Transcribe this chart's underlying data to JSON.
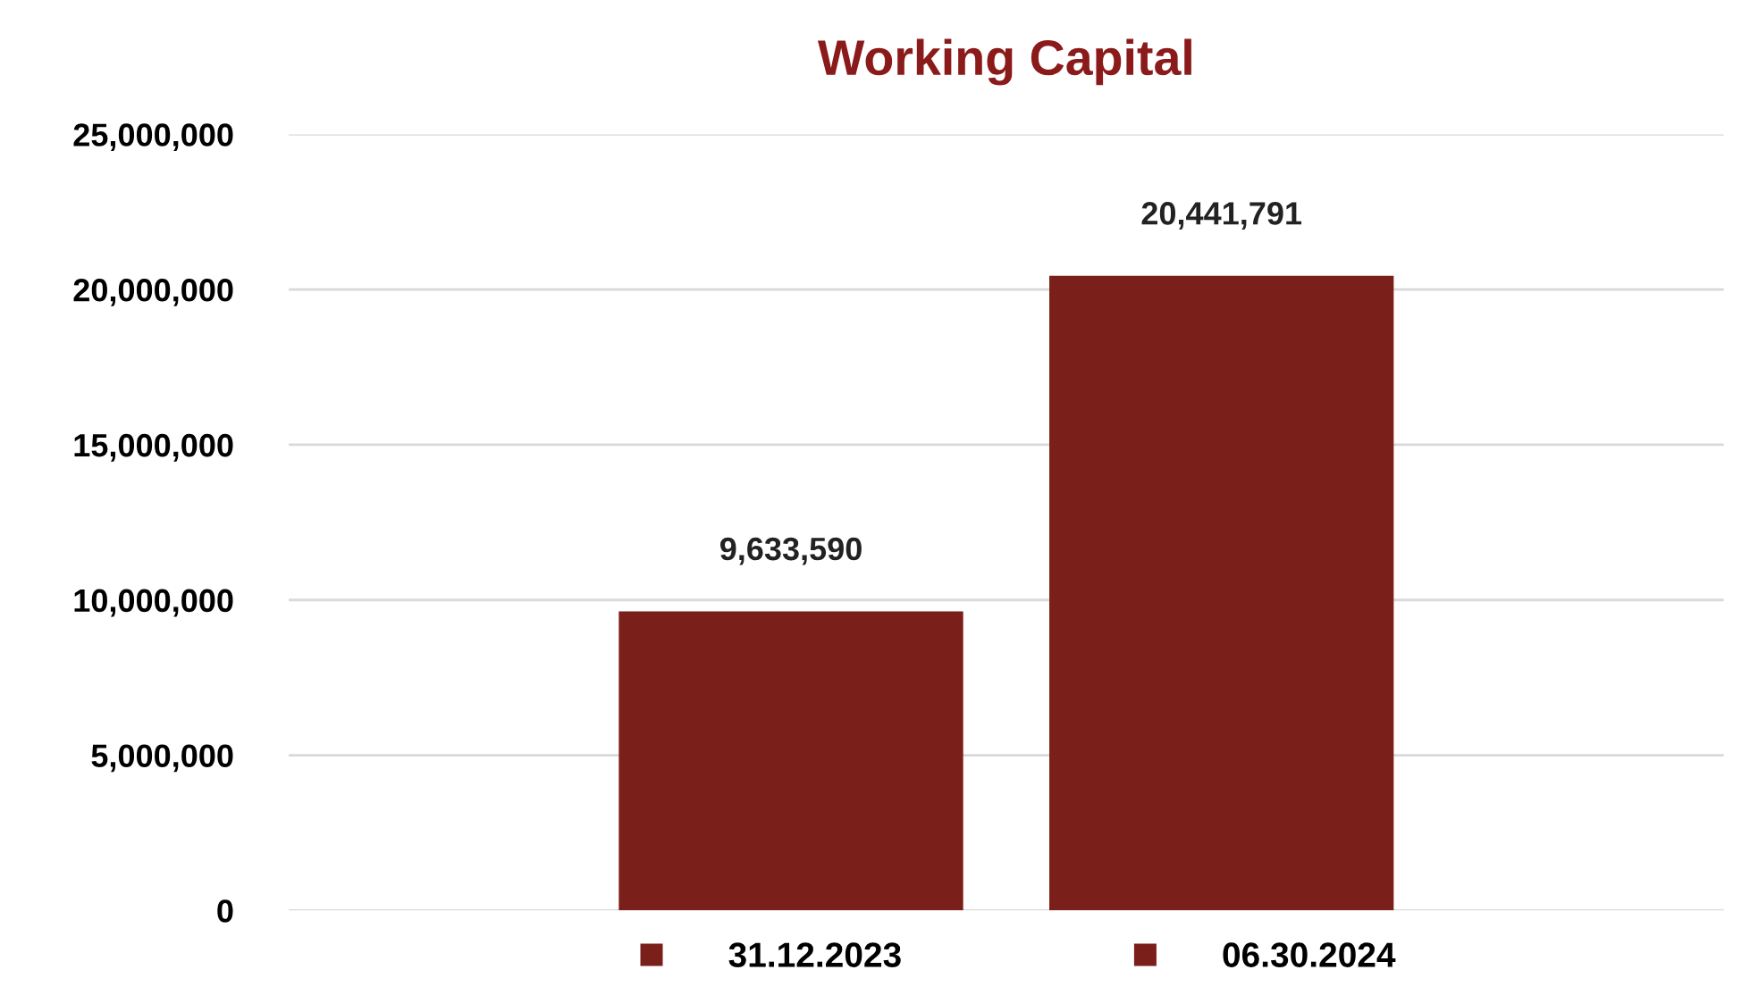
{
  "chart_data": {
    "type": "bar",
    "title": "Working Capital",
    "categories": [
      null
    ],
    "series": [
      {
        "name": "31.12.2023",
        "color": "#7b1f1a",
        "values": [
          9633590
        ],
        "value_labels": [
          "9,633,590"
        ]
      },
      {
        "name": "06.30.2024",
        "color": "#7b1f1a",
        "values": [
          20441791
        ],
        "value_labels": [
          "20,441,791"
        ]
      }
    ],
    "ylim": [
      0,
      25000000
    ],
    "yticks": [
      {
        "value": 0,
        "label": "0"
      },
      {
        "value": 5000000,
        "label": "5,000,000"
      },
      {
        "value": 10000000,
        "label": "10,000,000"
      },
      {
        "value": 15000000,
        "label": "15,000,000"
      },
      {
        "value": 20000000,
        "label": "20,000,000"
      },
      {
        "value": 25000000,
        "label": "25,000,000"
      }
    ],
    "grid": "y",
    "legend": "bottom"
  }
}
